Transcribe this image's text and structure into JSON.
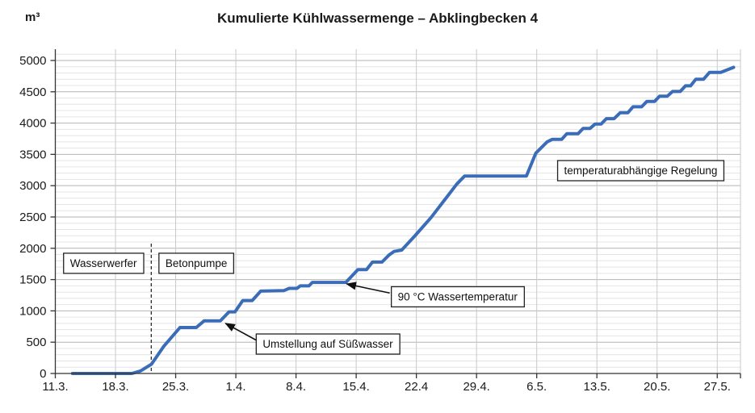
{
  "title": "Kumulierte Kühlwassermenge – Abklingbecken 4",
  "y_unit": "m³",
  "chart_data": {
    "type": "line",
    "title": "Kumulierte Kühlwassermenge – Abklingbecken 4",
    "ylabel": "m³",
    "xlabel": "",
    "grid": "on",
    "legend": "none",
    "line_color": "#3a6cb8",
    "ylim": [
      0,
      5180
    ],
    "xlim_days": [
      0,
      79.7
    ],
    "y_ticks": [
      0,
      500,
      1000,
      1500,
      2000,
      2500,
      3000,
      3500,
      4000,
      4500,
      5000
    ],
    "y_minor_step": 100,
    "x_ticks": [
      {
        "label": "11.3.",
        "day": 0
      },
      {
        "label": "18.3.",
        "day": 7
      },
      {
        "label": "25.3.",
        "day": 14
      },
      {
        "label": "1.4.",
        "day": 21
      },
      {
        "label": "8.4.",
        "day": 28
      },
      {
        "label": "15.4.",
        "day": 35
      },
      {
        "label": "22.4",
        "day": 42
      },
      {
        "label": "29.4.",
        "day": 49
      },
      {
        "label": "6.5.",
        "day": 56
      },
      {
        "label": "13.5.",
        "day": 63
      },
      {
        "label": "20.5.",
        "day": 70
      },
      {
        "label": "27.5.",
        "day": 77
      }
    ],
    "end_tick_day": 79.7,
    "divider": {
      "day": 11.16,
      "from_value": 0,
      "to_value": 2075,
      "style": "dashed"
    },
    "series": [
      {
        "color": "#3a6cb8",
        "points": [
          [
            2.0,
            0
          ],
          [
            8.9,
            0
          ],
          [
            9.9,
            40
          ],
          [
            11.2,
            150
          ],
          [
            12.6,
            430
          ],
          [
            14.5,
            735
          ],
          [
            16.4,
            735
          ],
          [
            17.3,
            840
          ],
          [
            19.2,
            840
          ],
          [
            20.2,
            985
          ],
          [
            20.9,
            985
          ],
          [
            21.8,
            1165
          ],
          [
            22.9,
            1165
          ],
          [
            23.9,
            1315
          ],
          [
            26.6,
            1325
          ],
          [
            27.2,
            1360
          ],
          [
            28.1,
            1360
          ],
          [
            28.5,
            1400
          ],
          [
            29.5,
            1400
          ],
          [
            29.9,
            1455
          ],
          [
            33.8,
            1455
          ],
          [
            35.2,
            1660
          ],
          [
            36.2,
            1660
          ],
          [
            36.9,
            1780
          ],
          [
            38.0,
            1780
          ],
          [
            38.8,
            1890
          ],
          [
            39.4,
            1950
          ],
          [
            40.3,
            1972
          ],
          [
            41.9,
            2210
          ],
          [
            43.7,
            2490
          ],
          [
            45.5,
            2810
          ],
          [
            46.7,
            3025
          ],
          [
            47.6,
            3153
          ],
          [
            54.8,
            3153
          ],
          [
            55.9,
            3520
          ],
          [
            57.2,
            3700
          ],
          [
            57.8,
            3740
          ],
          [
            58.9,
            3740
          ],
          [
            59.5,
            3830
          ],
          [
            60.8,
            3830
          ],
          [
            61.4,
            3915
          ],
          [
            62.2,
            3915
          ],
          [
            62.8,
            3985
          ],
          [
            63.5,
            3985
          ],
          [
            64.1,
            4070
          ],
          [
            65.0,
            4070
          ],
          [
            65.7,
            4165
          ],
          [
            66.6,
            4165
          ],
          [
            67.2,
            4260
          ],
          [
            68.2,
            4260
          ],
          [
            68.8,
            4345
          ],
          [
            69.7,
            4345
          ],
          [
            70.3,
            4430
          ],
          [
            71.2,
            4430
          ],
          [
            71.8,
            4505
          ],
          [
            72.7,
            4505
          ],
          [
            73.3,
            4595
          ],
          [
            73.9,
            4595
          ],
          [
            74.5,
            4700
          ],
          [
            75.4,
            4700
          ],
          [
            76.1,
            4810
          ],
          [
            77.4,
            4810
          ],
          [
            78.9,
            4890
          ]
        ]
      }
    ],
    "annotations": [
      {
        "id": "wasserwerfer",
        "label": "Wasserwerfer",
        "at": [
          5.6,
          1760
        ]
      },
      {
        "id": "betonpumpe",
        "label": "Betonpumpe",
        "at": [
          16.4,
          1760
        ]
      },
      {
        "id": "umstellung-suesswasser",
        "label": "Umstellung auf Süßwasser",
        "at": [
          31.7,
          470
        ],
        "arrow": {
          "from": [
            23.4,
            530
          ],
          "tip": [
            19.8,
            800
          ]
        }
      },
      {
        "id": "wassertemperatur-90c",
        "label": "90 °C Wassertemperatur",
        "at": [
          46.8,
          1225
        ],
        "arrow": {
          "from": [
            38.9,
            1285
          ],
          "tip": [
            33.9,
            1430
          ]
        }
      },
      {
        "id": "temperaturabhaengige-regelung",
        "label": "temperaturabhängige Regelung",
        "at": [
          68.1,
          3240
        ]
      }
    ]
  }
}
